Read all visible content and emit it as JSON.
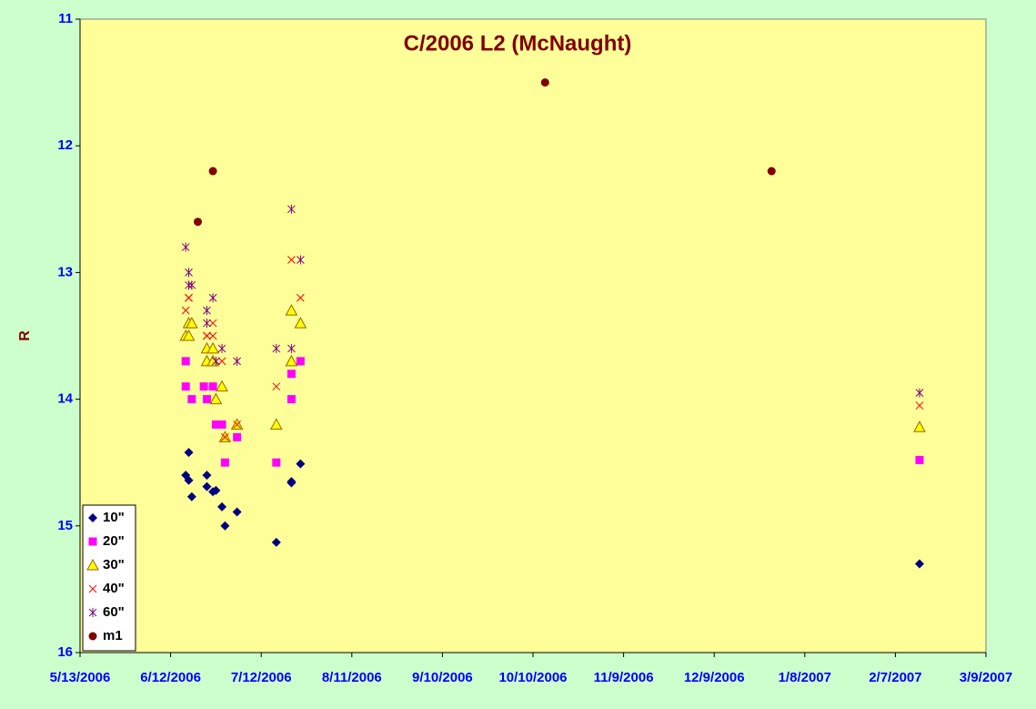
{
  "chart_data": {
    "type": "scatter",
    "title": "C/2006 L2 (McNaught)",
    "y_label": "R",
    "ylim": [
      11,
      16
    ],
    "y_inverted": true,
    "yticks": [
      11,
      12,
      13,
      14,
      15,
      16
    ],
    "xlim": [
      "2006-05-13",
      "2007-03-09"
    ],
    "xticks": [
      {
        "value": "2006-05-13",
        "label": "5/13/2006"
      },
      {
        "value": "2006-06-12",
        "label": "6/12/2006"
      },
      {
        "value": "2006-07-12",
        "label": "7/12/2006"
      },
      {
        "value": "2006-08-11",
        "label": "8/11/2006"
      },
      {
        "value": "2006-09-10",
        "label": "9/10/2006"
      },
      {
        "value": "2006-10-10",
        "label": "10/10/2006"
      },
      {
        "value": "2006-11-09",
        "label": "11/9/2006"
      },
      {
        "value": "2006-12-09",
        "label": "12/9/2006"
      },
      {
        "value": "2007-01-08",
        "label": "1/8/2007"
      },
      {
        "value": "2007-02-07",
        "label": "2/7/2007"
      },
      {
        "value": "2007-03-09",
        "label": "3/9/2007"
      }
    ],
    "legend": "bottom-left",
    "series": [
      {
        "name": "10\"",
        "color": "#000080",
        "marker": "diamond",
        "x": [
          "2006-06-17",
          "2006-06-18",
          "2006-06-18",
          "2006-06-19",
          "2006-06-24",
          "2006-06-24",
          "2006-06-26",
          "2006-06-27",
          "2006-06-29",
          "2006-06-30",
          "2006-07-04",
          "2006-07-17",
          "2006-07-22",
          "2006-07-22",
          "2006-07-25",
          "2007-02-15"
        ],
        "values": [
          14.6,
          14.64,
          14.42,
          14.77,
          14.6,
          14.69,
          14.73,
          14.72,
          14.85,
          15.0,
          14.89,
          15.13,
          14.66,
          14.65,
          14.51,
          15.3
        ]
      },
      {
        "name": "20\"",
        "color": "#ff00ff",
        "marker": "square",
        "x": [
          "2006-06-17",
          "2006-06-17",
          "2006-06-19",
          "2006-06-23",
          "2006-06-24",
          "2006-06-26",
          "2006-06-27",
          "2006-06-29",
          "2006-06-30",
          "2006-07-04",
          "2006-07-17",
          "2006-07-22",
          "2006-07-22",
          "2006-07-25",
          "2007-02-15"
        ],
        "values": [
          13.7,
          13.9,
          14.0,
          13.9,
          14.0,
          13.9,
          14.2,
          14.2,
          14.5,
          14.3,
          14.5,
          13.8,
          14.0,
          13.7,
          14.48
        ]
      },
      {
        "name": "30\"",
        "color": "#ffff00",
        "marker": "triangle",
        "x": [
          "2006-06-17",
          "2006-06-18",
          "2006-06-18",
          "2006-06-19",
          "2006-06-24",
          "2006-06-24",
          "2006-06-26",
          "2006-06-26",
          "2006-06-27",
          "2006-06-29",
          "2006-06-30",
          "2006-07-04",
          "2006-07-17",
          "2006-07-22",
          "2006-07-22",
          "2006-07-25",
          "2007-02-15"
        ],
        "values": [
          13.5,
          13.4,
          13.5,
          13.4,
          13.6,
          13.7,
          13.6,
          13.7,
          14.0,
          13.9,
          14.3,
          14.2,
          14.2,
          13.3,
          13.7,
          13.4,
          14.22
        ]
      },
      {
        "name": "40\"",
        "color": "#ff0000",
        "marker": "x",
        "x": [
          "2006-06-17",
          "2006-06-18",
          "2006-06-18",
          "2006-06-24",
          "2006-06-24",
          "2006-06-26",
          "2006-06-26",
          "2006-06-29",
          "2006-06-30",
          "2006-07-04",
          "2006-07-17",
          "2006-07-22",
          "2006-07-25",
          "2007-02-15"
        ],
        "values": [
          13.3,
          13.2,
          13.2,
          13.5,
          13.5,
          13.4,
          13.5,
          13.7,
          14.3,
          14.2,
          13.9,
          12.9,
          13.2,
          14.05
        ]
      },
      {
        "name": "60\"",
        "color": "#800080",
        "marker": "star",
        "x": [
          "2006-06-17",
          "2006-06-18",
          "2006-06-18",
          "2006-06-19",
          "2006-06-24",
          "2006-06-24",
          "2006-06-26",
          "2006-06-27",
          "2006-06-29",
          "2006-07-04",
          "2006-07-17",
          "2006-07-22",
          "2006-07-22",
          "2006-07-25",
          "2007-02-15"
        ],
        "values": [
          12.8,
          13.0,
          13.1,
          13.1,
          13.4,
          13.3,
          13.2,
          13.7,
          13.6,
          13.7,
          13.6,
          12.5,
          13.6,
          12.9,
          13.95
        ]
      },
      {
        "name": "m1",
        "color": "#800000",
        "marker": "circle",
        "x": [
          "2006-06-21",
          "2006-06-26",
          "2006-10-14",
          "2006-12-28"
        ],
        "values": [
          12.6,
          12.2,
          11.5,
          12.2
        ]
      }
    ]
  }
}
